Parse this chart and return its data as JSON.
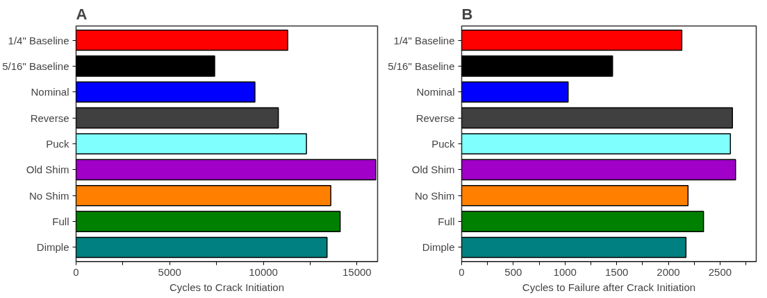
{
  "chart_data": [
    {
      "type": "bar",
      "orientation": "horizontal",
      "title": "A",
      "xlabel": "Cycles to Crack Initiation",
      "categories": [
        "1/4\" Baseline",
        "5/16\" Baseline",
        "Nominal",
        "Reverse",
        "Puck",
        "Old Shim",
        "No Shim",
        "Full",
        "Dimple"
      ],
      "values": [
        11300,
        7400,
        9550,
        10800,
        12300,
        16000,
        13600,
        14100,
        13400
      ],
      "colors": [
        "#ff0000",
        "#000000",
        "#0000ff",
        "#404040",
        "#80ffff",
        "#a000c8",
        "#ff8000",
        "#008000",
        "#008080"
      ],
      "xlim": [
        0,
        16100
      ],
      "xticks": [
        0,
        {
          "value": 2500,
          "label": null
        },
        5000,
        {
          "value": 7500,
          "label": null
        },
        10000,
        {
          "value": 12500,
          "label": null
        },
        15000
      ]
    },
    {
      "type": "bar",
      "orientation": "horizontal",
      "title": "B",
      "xlabel": "Cycles to Failure after Crack Initiation",
      "categories": [
        "1/4\" Baseline",
        "5/16\" Baseline",
        "Nominal",
        "Reverse",
        "Puck",
        "Old Shim",
        "No Shim",
        "Full",
        "Dimple"
      ],
      "values": [
        2130,
        1460,
        1030,
        2620,
        2600,
        2650,
        2190,
        2340,
        2170
      ],
      "colors": [
        "#ff0000",
        "#000000",
        "#0000ff",
        "#404040",
        "#80ffff",
        "#a000c8",
        "#ff8000",
        "#008000",
        "#008080"
      ],
      "xlim": [
        0,
        2850
      ],
      "xticks": [
        0,
        {
          "value": 250,
          "label": null
        },
        500,
        {
          "value": 750,
          "label": null
        },
        1000,
        {
          "value": 1250,
          "label": null
        },
        1500,
        {
          "value": 1750,
          "label": null
        },
        2000,
        {
          "value": 2250,
          "label": null
        },
        2500,
        {
          "value": 2750,
          "label": null
        }
      ]
    }
  ]
}
